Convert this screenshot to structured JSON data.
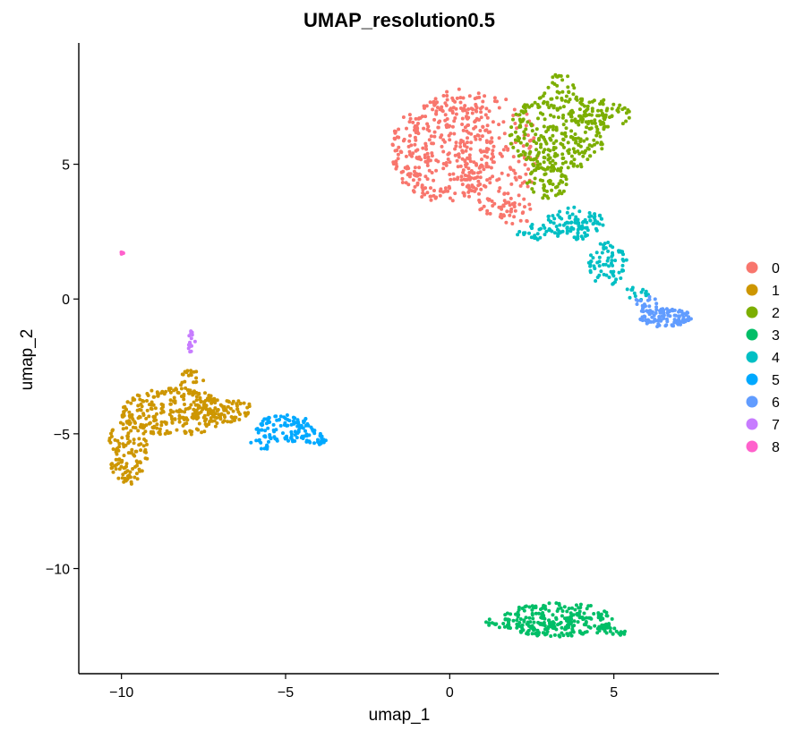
{
  "chart_data": {
    "type": "scatter",
    "title": "UMAP_resolution0.5",
    "xlabel": "umap_1",
    "ylabel": "umap_2",
    "xlim": [
      -11.3,
      8.2
    ],
    "ylim": [
      -13.9,
      9.5
    ],
    "x_ticks": [
      -10,
      -5,
      0,
      5
    ],
    "x_tick_labels": [
      "−10",
      "−5",
      "0",
      "5"
    ],
    "y_ticks": [
      -10,
      -5,
      0,
      5
    ],
    "y_tick_labels": [
      "−10",
      "−5",
      "0",
      "5"
    ],
    "grid": false,
    "legend_position": "right",
    "series": [
      {
        "name": "0",
        "color": "#F8766D",
        "regions": [
          {
            "cx": -0.2,
            "cy": 5.5,
            "rx": 1.6,
            "ry": 1.9,
            "n": 320
          },
          {
            "cx": 1.5,
            "cy": 5.3,
            "rx": 1.2,
            "ry": 2.3,
            "n": 170
          },
          {
            "cx": 0.4,
            "cy": 7.2,
            "rx": 0.9,
            "ry": 0.6,
            "n": 40
          },
          {
            "cx": 2.0,
            "cy": 3.2,
            "rx": 0.5,
            "ry": 0.6,
            "n": 30
          }
        ]
      },
      {
        "name": "1",
        "color": "#CD9600",
        "regions": [
          {
            "cx": -8.4,
            "cy": -4.2,
            "rx": 1.6,
            "ry": 0.9,
            "n": 260
          },
          {
            "cx": -9.8,
            "cy": -5.6,
            "rx": 0.6,
            "ry": 1.3,
            "n": 120
          },
          {
            "cx": -7.0,
            "cy": -4.1,
            "rx": 1.0,
            "ry": 0.5,
            "n": 80
          },
          {
            "cx": -7.9,
            "cy": -3.0,
            "rx": 0.4,
            "ry": 0.4,
            "n": 20
          }
        ]
      },
      {
        "name": "2",
        "color": "#7CAE00",
        "regions": [
          {
            "cx": 3.3,
            "cy": 6.2,
            "rx": 1.5,
            "ry": 1.5,
            "n": 300
          },
          {
            "cx": 4.6,
            "cy": 6.8,
            "rx": 0.9,
            "ry": 0.6,
            "n": 60
          },
          {
            "cx": 2.9,
            "cy": 4.3,
            "rx": 0.7,
            "ry": 0.6,
            "n": 50
          },
          {
            "cx": 3.4,
            "cy": 7.9,
            "rx": 0.4,
            "ry": 0.5,
            "n": 20
          }
        ]
      },
      {
        "name": "3",
        "color": "#00BE67",
        "regions": [
          {
            "cx": 3.3,
            "cy": -11.9,
            "rx": 1.7,
            "ry": 0.65,
            "n": 240
          },
          {
            "cx": 1.7,
            "cy": -12.0,
            "rx": 0.6,
            "ry": 0.2,
            "n": 20
          },
          {
            "cx": 4.9,
            "cy": -12.3,
            "rx": 0.5,
            "ry": 0.25,
            "n": 25
          }
        ]
      },
      {
        "name": "4",
        "color": "#00BFC4",
        "regions": [
          {
            "cx": 3.8,
            "cy": 2.8,
            "rx": 0.9,
            "ry": 0.6,
            "n": 100
          },
          {
            "cx": 4.8,
            "cy": 1.3,
            "rx": 0.6,
            "ry": 0.8,
            "n": 70
          },
          {
            "cx": 2.6,
            "cy": 2.5,
            "rx": 0.6,
            "ry": 0.3,
            "n": 25
          },
          {
            "cx": 5.7,
            "cy": 0.2,
            "rx": 0.4,
            "ry": 0.3,
            "n": 15
          }
        ]
      },
      {
        "name": "5",
        "color": "#00A9FF",
        "regions": [
          {
            "cx": -5.0,
            "cy": -4.8,
            "rx": 0.9,
            "ry": 0.5,
            "n": 110
          },
          {
            "cx": -4.1,
            "cy": -5.2,
            "rx": 0.35,
            "ry": 0.25,
            "n": 25
          },
          {
            "cx": -5.7,
            "cy": -5.4,
            "rx": 0.4,
            "ry": 0.2,
            "n": 12
          }
        ]
      },
      {
        "name": "6",
        "color": "#619CFF",
        "regions": [
          {
            "cx": 6.6,
            "cy": -0.7,
            "rx": 0.8,
            "ry": 0.35,
            "n": 110
          },
          {
            "cx": 6.0,
            "cy": -0.2,
            "rx": 0.4,
            "ry": 0.3,
            "n": 20
          }
        ]
      },
      {
        "name": "7",
        "color": "#C77CFF",
        "regions": [
          {
            "cx": -7.85,
            "cy": -1.6,
            "rx": 0.12,
            "ry": 0.5,
            "n": 16
          }
        ]
      },
      {
        "name": "8",
        "color": "#FF61CC",
        "regions": [
          {
            "cx": -10.0,
            "cy": 1.7,
            "rx": 0.08,
            "ry": 0.06,
            "n": 6
          }
        ]
      }
    ]
  }
}
